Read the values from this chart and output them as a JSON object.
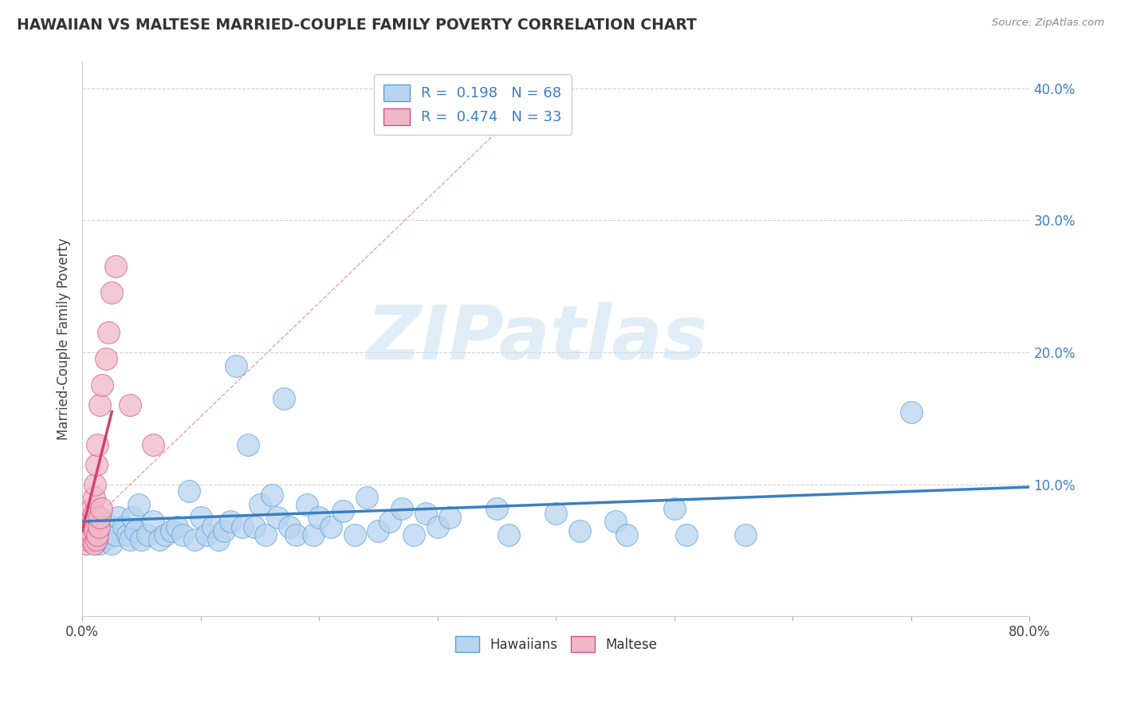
{
  "title": "HAWAIIAN VS MALTESE MARRIED-COUPLE FAMILY POVERTY CORRELATION CHART",
  "source": "Source: ZipAtlas.com",
  "ylabel": "Married-Couple Family Poverty",
  "xlim": [
    0.0,
    0.8
  ],
  "ylim": [
    0.0,
    0.42
  ],
  "xticks": [
    0.0,
    0.1,
    0.2,
    0.3,
    0.4,
    0.5,
    0.6,
    0.7,
    0.8
  ],
  "yticks": [
    0.0,
    0.1,
    0.2,
    0.3,
    0.4
  ],
  "hawaiian_color": "#b8d4f0",
  "maltese_color": "#f0b8c8",
  "hawaiian_edge_color": "#5a9fd4",
  "maltese_edge_color": "#d45080",
  "hawaiian_line_color": "#3a7fc1",
  "maltese_line_color": "#d44070",
  "hawaiian_R": 0.198,
  "hawaiian_N": 68,
  "maltese_R": 0.474,
  "maltese_N": 33,
  "watermark": "ZIPatlas",
  "hawaiian_points": [
    [
      0.005,
      0.072
    ],
    [
      0.008,
      0.068
    ],
    [
      0.01,
      0.065
    ],
    [
      0.012,
      0.06
    ],
    [
      0.015,
      0.055
    ],
    [
      0.018,
      0.058
    ],
    [
      0.02,
      0.07
    ],
    [
      0.022,
      0.06
    ],
    [
      0.025,
      0.055
    ],
    [
      0.028,
      0.062
    ],
    [
      0.03,
      0.075
    ],
    [
      0.035,
      0.068
    ],
    [
      0.038,
      0.062
    ],
    [
      0.04,
      0.058
    ],
    [
      0.042,
      0.075
    ],
    [
      0.045,
      0.065
    ],
    [
      0.048,
      0.085
    ],
    [
      0.05,
      0.058
    ],
    [
      0.055,
      0.062
    ],
    [
      0.06,
      0.072
    ],
    [
      0.065,
      0.058
    ],
    [
      0.07,
      0.062
    ],
    [
      0.075,
      0.065
    ],
    [
      0.08,
      0.068
    ],
    [
      0.085,
      0.062
    ],
    [
      0.09,
      0.095
    ],
    [
      0.095,
      0.058
    ],
    [
      0.1,
      0.075
    ],
    [
      0.105,
      0.062
    ],
    [
      0.11,
      0.068
    ],
    [
      0.115,
      0.058
    ],
    [
      0.12,
      0.065
    ],
    [
      0.125,
      0.072
    ],
    [
      0.13,
      0.19
    ],
    [
      0.135,
      0.068
    ],
    [
      0.14,
      0.13
    ],
    [
      0.145,
      0.068
    ],
    [
      0.15,
      0.085
    ],
    [
      0.155,
      0.062
    ],
    [
      0.16,
      0.092
    ],
    [
      0.165,
      0.075
    ],
    [
      0.17,
      0.165
    ],
    [
      0.175,
      0.068
    ],
    [
      0.18,
      0.062
    ],
    [
      0.19,
      0.085
    ],
    [
      0.195,
      0.062
    ],
    [
      0.2,
      0.075
    ],
    [
      0.21,
      0.068
    ],
    [
      0.22,
      0.08
    ],
    [
      0.23,
      0.062
    ],
    [
      0.24,
      0.09
    ],
    [
      0.25,
      0.065
    ],
    [
      0.26,
      0.072
    ],
    [
      0.27,
      0.082
    ],
    [
      0.28,
      0.062
    ],
    [
      0.29,
      0.078
    ],
    [
      0.3,
      0.068
    ],
    [
      0.31,
      0.075
    ],
    [
      0.35,
      0.082
    ],
    [
      0.36,
      0.062
    ],
    [
      0.4,
      0.078
    ],
    [
      0.42,
      0.065
    ],
    [
      0.45,
      0.072
    ],
    [
      0.46,
      0.062
    ],
    [
      0.5,
      0.082
    ],
    [
      0.51,
      0.062
    ],
    [
      0.56,
      0.062
    ],
    [
      0.7,
      0.155
    ]
  ],
  "maltese_points": [
    [
      0.002,
      0.06
    ],
    [
      0.003,
      0.055
    ],
    [
      0.004,
      0.058
    ],
    [
      0.005,
      0.062
    ],
    [
      0.005,
      0.068
    ],
    [
      0.006,
      0.065
    ],
    [
      0.006,
      0.072
    ],
    [
      0.007,
      0.06
    ],
    [
      0.007,
      0.075
    ],
    [
      0.008,
      0.058
    ],
    [
      0.008,
      0.082
    ],
    [
      0.009,
      0.062
    ],
    [
      0.009,
      0.07
    ],
    [
      0.01,
      0.055
    ],
    [
      0.01,
      0.078
    ],
    [
      0.01,
      0.09
    ],
    [
      0.011,
      0.065
    ],
    [
      0.011,
      0.1
    ],
    [
      0.012,
      0.058
    ],
    [
      0.012,
      0.115
    ],
    [
      0.013,
      0.062
    ],
    [
      0.013,
      0.13
    ],
    [
      0.014,
      0.068
    ],
    [
      0.015,
      0.075
    ],
    [
      0.015,
      0.16
    ],
    [
      0.016,
      0.082
    ],
    [
      0.017,
      0.175
    ],
    [
      0.02,
      0.195
    ],
    [
      0.022,
      0.215
    ],
    [
      0.025,
      0.245
    ],
    [
      0.028,
      0.265
    ],
    [
      0.04,
      0.16
    ],
    [
      0.06,
      0.13
    ]
  ]
}
